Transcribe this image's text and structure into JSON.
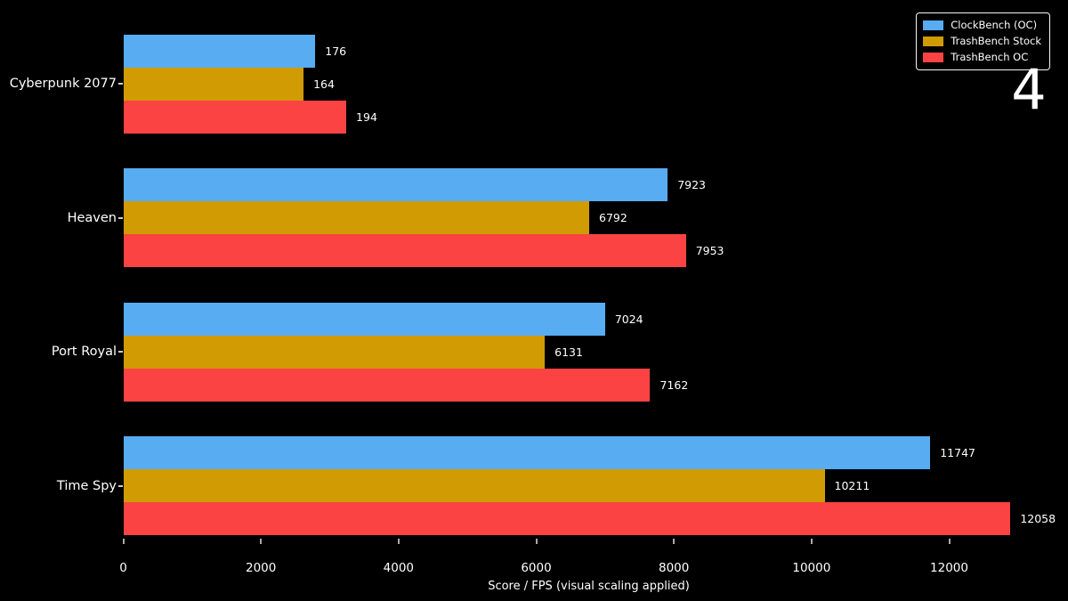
{
  "overlay": {
    "number": "4"
  },
  "colors": {
    "background": "#000000",
    "text": "#ffffff",
    "tick": "#aaaaaa",
    "legend_border": "#f5f5f5"
  },
  "chart_data": {
    "type": "bar",
    "orientation": "horizontal",
    "title": "",
    "xlabel": "Score / FPS (visual scaling applied)",
    "ylabel": "",
    "x_ticks": [
      0,
      2000,
      4000,
      6000,
      8000,
      10000,
      12000
    ],
    "xlim": [
      0,
      13500
    ],
    "grid": false,
    "legend_position": "upper-right",
    "categories": [
      "Cyberpunk 2077",
      "Heaven",
      "Port Royal",
      "Time Spy"
    ],
    "series": [
      {
        "name": "ClockBench (OC)",
        "color": "#58acf2",
        "values": [
          176,
          7923,
          7024,
          11747
        ],
        "display_values": [
          2790,
          7910,
          7000,
          11725
        ]
      },
      {
        "name": "TrashBench Stock",
        "color": "#d19b03",
        "values": [
          164,
          6792,
          6131,
          10211
        ],
        "display_values": [
          2620,
          6770,
          6125,
          10190
        ]
      },
      {
        "name": "TrashBench OC",
        "color": "#fb4343",
        "values": [
          194,
          7953,
          7162,
          12058
        ],
        "display_values": [
          3240,
          8175,
          7655,
          12890
        ]
      }
    ]
  }
}
